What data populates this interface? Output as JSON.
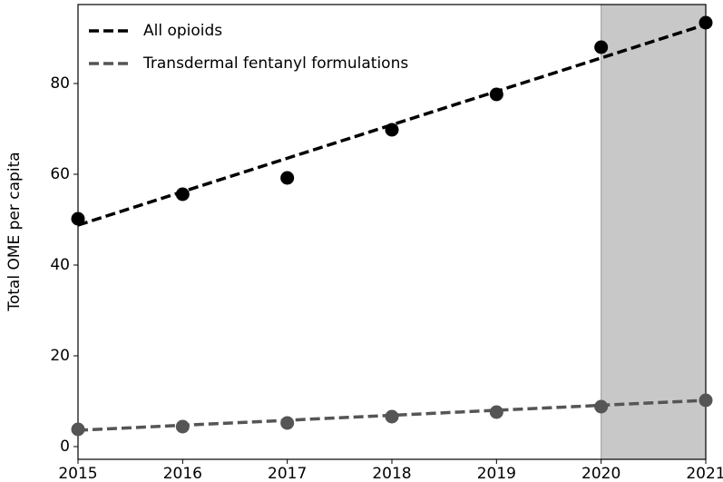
{
  "chart_data": {
    "type": "scatter-trend",
    "y_label": "Total OME per capita",
    "x": [
      2015,
      2016,
      2017,
      2018,
      2019,
      2020,
      2021
    ],
    "xlim": [
      2015,
      2021
    ],
    "xticks": [
      2015,
      2016,
      2017,
      2018,
      2019,
      2020,
      2021
    ],
    "ylim": [
      -2.8,
      97.4
    ],
    "yticks": [
      0,
      20,
      40,
      60,
      80
    ],
    "shaded_range": [
      2020,
      2021
    ],
    "shade_color": "#c8c8c8",
    "legend": "upper left",
    "series": [
      {
        "name": "All opioids",
        "color": "#000000",
        "values": [
          50.2,
          55.6,
          59.2,
          69.8,
          77.6,
          88.0,
          93.4
        ],
        "trend": [
          48.8,
          93.0
        ]
      },
      {
        "name": "Transdermal fentanyl formulations",
        "color": "#555555",
        "values": [
          3.8,
          4.4,
          5.2,
          6.6,
          7.6,
          8.8,
          10.2
        ],
        "trend": [
          3.6,
          10.2
        ]
      }
    ]
  }
}
